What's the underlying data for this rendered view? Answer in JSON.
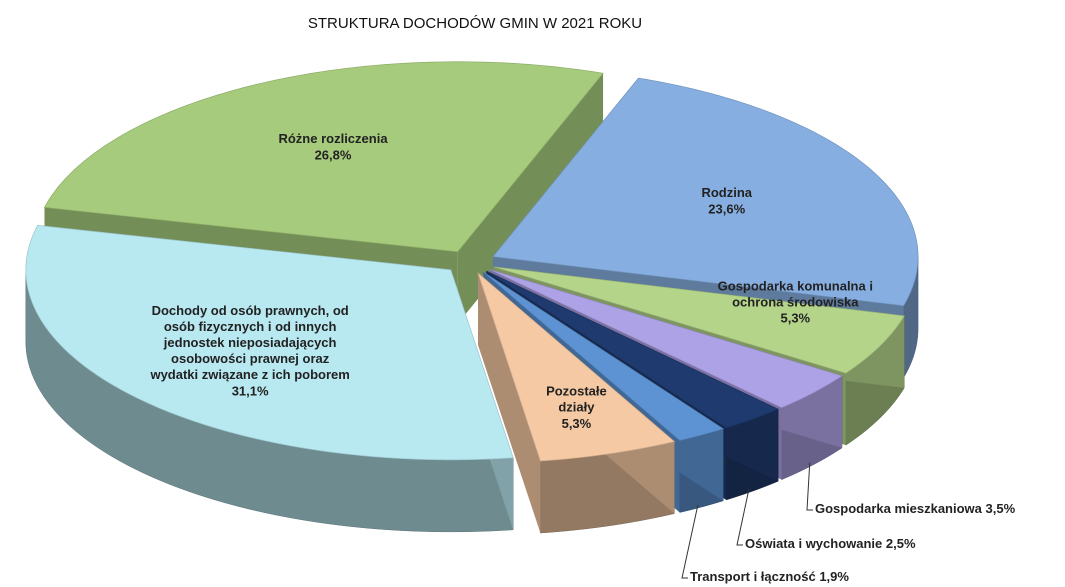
{
  "chart_data": {
    "type": "pie3d",
    "title": "STRUKTURA DOCHODÓW GMIN W 2021 ROKU",
    "categories": [
      "Rodzina",
      "Gospodarka komunalna i ochrona środowiska",
      "Gospodarka mieszkaniowa",
      "Oświata i wychowanie",
      "Transport i łączność",
      "Pozostałe działy",
      "Dochody od osób prawnych, od osób fizycznych i od innych jednostek nieposiadających osobowości prawnej oraz wydatki związane z ich poborem",
      "Różne rozliczenia"
    ],
    "values": [
      23.6,
      5.3,
      3.5,
      2.5,
      1.9,
      5.3,
      31.1,
      26.8
    ],
    "value_labels": [
      "23,6%",
      "5,3%",
      "3,5%",
      "2,5%",
      "1,9%",
      "5,3%",
      "31,1%",
      "26,8%"
    ],
    "colors": [
      "#86aee0",
      "#b4d48a",
      "#aea2e6",
      "#1f3a6e",
      "#5d93d3",
      "#f5c9a3",
      "#b8e8f0",
      "#a6cb7c"
    ]
  }
}
